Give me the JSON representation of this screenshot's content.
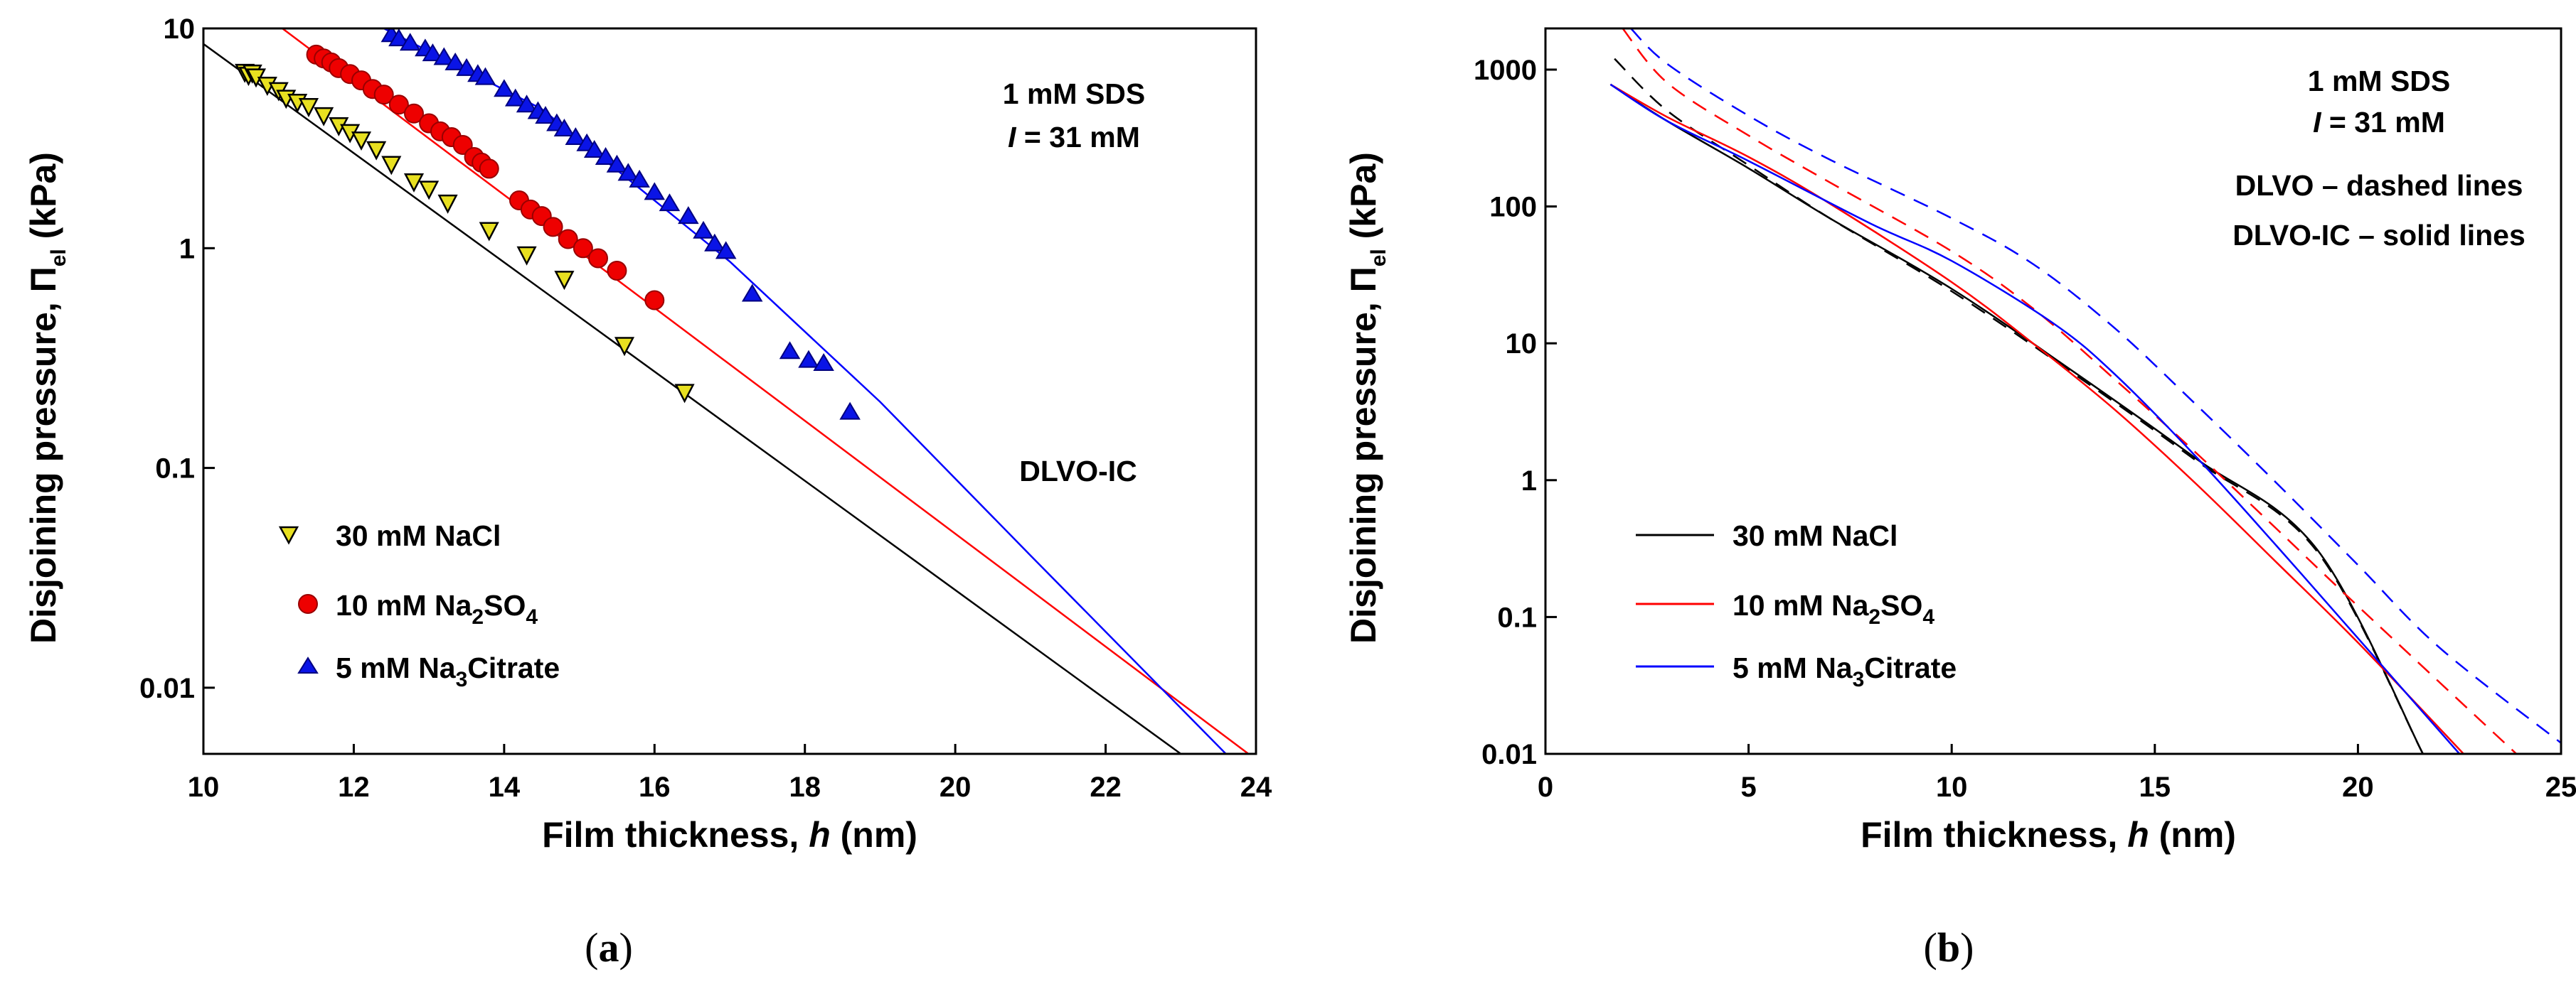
{
  "chart_data": [
    {
      "panel": "a",
      "type": "scatter",
      "xlabel": "Film thickness, h (nm)",
      "ylabel": "Disjoining pressure, Πel (kPa)",
      "xlim": [
        10,
        24
      ],
      "ylim": [
        0.005,
        10
      ],
      "yscale": "log",
      "xticks": [
        10,
        12,
        14,
        16,
        18,
        20,
        22,
        24
      ],
      "yticks": [
        0.01,
        0.1,
        1,
        10
      ],
      "yticklabels": [
        "0.01",
        "0.1",
        "1",
        "10"
      ],
      "annotations": [
        "1 mM SDS",
        "I = 31 mM",
        "DLVO-IC"
      ],
      "legend_position": "bottom-left",
      "series": [
        {
          "name": "30 mM NaCl",
          "color": "#000000",
          "marker": "triangle-down",
          "marker_color": "#e8e020",
          "points": [
            [
              10.55,
              6.3
            ],
            [
              10.6,
              6.1
            ],
            [
              10.65,
              6.25
            ],
            [
              10.7,
              6.0
            ],
            [
              10.85,
              5.5
            ],
            [
              11.0,
              5.2
            ],
            [
              11.1,
              4.8
            ],
            [
              11.25,
              4.6
            ],
            [
              11.4,
              4.4
            ],
            [
              11.6,
              4.0
            ],
            [
              11.8,
              3.6
            ],
            [
              11.95,
              3.35
            ],
            [
              12.1,
              3.1
            ],
            [
              12.3,
              2.8
            ],
            [
              12.5,
              2.4
            ],
            [
              12.8,
              2.0
            ],
            [
              13.0,
              1.85
            ],
            [
              13.25,
              1.6
            ],
            [
              13.8,
              1.2
            ],
            [
              14.3,
              0.93
            ],
            [
              14.8,
              0.72
            ],
            [
              15.6,
              0.36
            ],
            [
              16.4,
              0.22
            ]
          ],
          "fit_line": [
            [
              10,
              8.5
            ],
            [
              23,
              0.005
            ]
          ]
        },
        {
          "name": "10 mM Na2SO4",
          "color": "#ff0000",
          "marker": "circle",
          "marker_color": "#ee0000",
          "points": [
            [
              11.5,
              7.6
            ],
            [
              11.6,
              7.3
            ],
            [
              11.7,
              7.0
            ],
            [
              11.8,
              6.6
            ],
            [
              11.95,
              6.2
            ],
            [
              12.1,
              5.8
            ],
            [
              12.25,
              5.3
            ],
            [
              12.4,
              5.0
            ],
            [
              12.6,
              4.5
            ],
            [
              12.8,
              4.1
            ],
            [
              13.0,
              3.7
            ],
            [
              13.15,
              3.4
            ],
            [
              13.3,
              3.2
            ],
            [
              13.45,
              2.95
            ],
            [
              13.6,
              2.6
            ],
            [
              13.7,
              2.45
            ],
            [
              13.8,
              2.3
            ],
            [
              14.2,
              1.65
            ],
            [
              14.35,
              1.5
            ],
            [
              14.5,
              1.4
            ],
            [
              14.65,
              1.25
            ],
            [
              14.85,
              1.1
            ],
            [
              15.05,
              1.0
            ],
            [
              15.25,
              0.9
            ],
            [
              15.5,
              0.79
            ],
            [
              16.0,
              0.58
            ]
          ],
          "fit_line": [
            [
              11.05,
              10
            ],
            [
              23.9,
              0.005
            ]
          ]
        },
        {
          "name": "5 mM Na3Citrate",
          "color": "#0000ff",
          "marker": "triangle-up",
          "marker_color": "#0a14e6",
          "points": [
            [
              12.5,
              9.4
            ],
            [
              12.6,
              9.0
            ],
            [
              12.75,
              8.6
            ],
            [
              12.95,
              8.1
            ],
            [
              13.05,
              7.7
            ],
            [
              13.2,
              7.4
            ],
            [
              13.35,
              7.0
            ],
            [
              13.5,
              6.6
            ],
            [
              13.65,
              6.2
            ],
            [
              13.75,
              6.0
            ],
            [
              14.0,
              5.3
            ],
            [
              14.15,
              4.8
            ],
            [
              14.3,
              4.5
            ],
            [
              14.45,
              4.2
            ],
            [
              14.55,
              4.0
            ],
            [
              14.7,
              3.7
            ],
            [
              14.8,
              3.5
            ],
            [
              14.95,
              3.2
            ],
            [
              15.1,
              3.0
            ],
            [
              15.2,
              2.8
            ],
            [
              15.35,
              2.6
            ],
            [
              15.5,
              2.4
            ],
            [
              15.65,
              2.2
            ],
            [
              15.8,
              2.05
            ],
            [
              16.0,
              1.8
            ],
            [
              16.2,
              1.6
            ],
            [
              16.45,
              1.4
            ],
            [
              16.65,
              1.2
            ],
            [
              16.8,
              1.05
            ],
            [
              16.95,
              0.97
            ],
            [
              17.3,
              0.62
            ],
            [
              17.8,
              0.34
            ],
            [
              18.05,
              0.31
            ],
            [
              18.25,
              0.3
            ],
            [
              18.6,
              0.18
            ]
          ],
          "fit_line": [
            [
              12.4,
              10
            ],
            [
              14.5,
              4.3
            ],
            [
              17.0,
              0.87
            ],
            [
              19.0,
              0.2
            ],
            [
              21.0,
              0.04
            ],
            [
              23.6,
              0.005
            ]
          ]
        }
      ]
    },
    {
      "panel": "b",
      "type": "line",
      "xlabel": "Film thickness, h (nm)",
      "ylabel": "Disjoining pressure, Πel (kPa)",
      "xlim": [
        0,
        25
      ],
      "ylim": [
        0.01,
        2000
      ],
      "yscale": "log",
      "xticks": [
        0,
        5,
        10,
        15,
        20,
        25
      ],
      "yticks": [
        0.01,
        0.1,
        1,
        10,
        100,
        1000
      ],
      "yticklabels": [
        "0.01",
        "0.1",
        "1",
        "10",
        "100",
        "1000"
      ],
      "annotations": [
        "1 mM SDS",
        "I = 31 mM",
        "DLVO – dashed lines",
        "DLVO-IC – solid lines"
      ],
      "legend_position": "bottom-left",
      "series": [
        {
          "name": "30 mM NaCl",
          "color": "#000000",
          "solid": [
            [
              1.6,
              780
            ],
            [
              3,
              420
            ],
            [
              5,
              190
            ],
            [
              7,
              82
            ],
            [
              10,
              25
            ],
            [
              13,
              6.2
            ],
            [
              16,
              1.45
            ],
            [
              19,
              0.31
            ],
            [
              21.6,
              0.01
            ]
          ],
          "dashed": [
            [
              1.7,
              1200
            ],
            [
              3,
              500
            ],
            [
              5,
              200
            ],
            [
              7,
              82
            ],
            [
              10,
              24
            ],
            [
              13,
              6
            ],
            [
              16,
              1.4
            ],
            [
              19,
              0.3
            ],
            [
              21.6,
              0.01
            ]
          ]
        },
        {
          "name": "10 mM Na2SO4",
          "color": "#ff0000",
          "solid": [
            [
              1.6,
              780
            ],
            [
              3,
              450
            ],
            [
              5,
              230
            ],
            [
              7,
              105
            ],
            [
              10,
              28
            ],
            [
              12,
              10
            ],
            [
              14,
              3.3
            ],
            [
              16,
              0.95
            ],
            [
              18,
              0.25
            ],
            [
              20,
              0.065
            ],
            [
              22.6,
              0.01
            ]
          ],
          "dashed": [
            [
              1.9,
              2000
            ],
            [
              3,
              800
            ],
            [
              5,
              330
            ],
            [
              7,
              150
            ],
            [
              10,
              47
            ],
            [
              12,
              18
            ],
            [
              14,
              5.5
            ],
            [
              16,
              1.6
            ],
            [
              18,
              0.44
            ],
            [
              20,
              0.12
            ],
            [
              23.9,
              0.01
            ]
          ]
        },
        {
          "name": "5 mM Na3Citrate",
          "color": "#0000ff",
          "solid": [
            [
              1.6,
              780
            ],
            [
              3,
              420
            ],
            [
              5,
              215
            ],
            [
              8,
              75
            ],
            [
              10,
              40
            ],
            [
              12.5,
              14
            ],
            [
              14,
              6
            ],
            [
              16,
              1.5
            ],
            [
              18,
              0.33
            ],
            [
              20,
              0.07
            ],
            [
              22.5,
              0.01
            ]
          ],
          "dashed": [
            [
              2.1,
              2000
            ],
            [
              3,
              1100
            ],
            [
              5,
              460
            ],
            [
              7,
              220
            ],
            [
              10,
              82
            ],
            [
              12,
              38
            ],
            [
              14,
              13
            ],
            [
              16,
              3.6
            ],
            [
              18,
              0.95
            ],
            [
              20,
              0.24
            ],
            [
              22,
              0.06
            ],
            [
              25,
              0.012
            ]
          ]
        }
      ]
    }
  ],
  "panel_labels": {
    "a": {
      "open": "(",
      "letter": "a",
      "close": ")"
    },
    "b": {
      "open": "(",
      "letter": "b",
      "close": ")"
    }
  }
}
